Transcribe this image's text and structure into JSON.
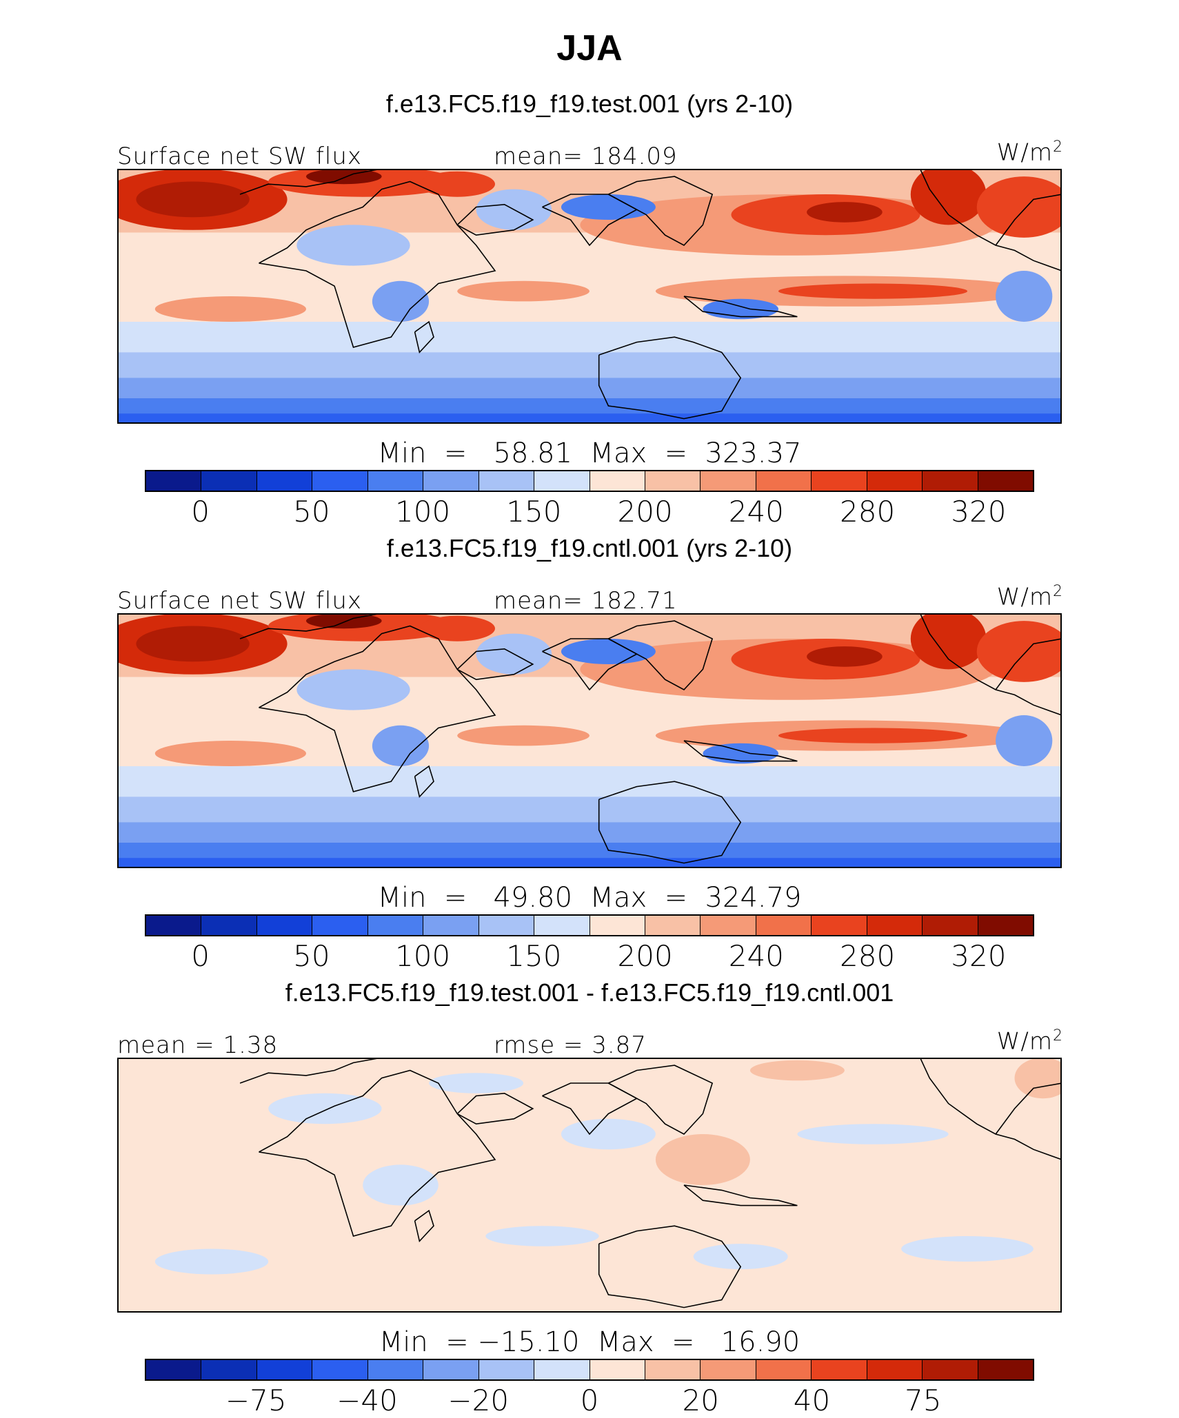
{
  "title": "JJA",
  "colors": {
    "palette": [
      "#0a1a8c",
      "#0b2fb5",
      "#1240d8",
      "#2b5ff0",
      "#4a7ef0",
      "#7aa0f2",
      "#a8c2f6",
      "#d3e2fa",
      "#fde5d6",
      "#f8c1a6",
      "#f59a77",
      "#f1714a",
      "#e9431f",
      "#d42a0a",
      "#b01c05",
      "#800c00"
    ],
    "land_outline": "#000000"
  },
  "panels": [
    {
      "case": "f.e13.FC5.f19_f19.test.001 (yrs 2-10)",
      "left_label": "Surface net SW flux",
      "center_label": "mean=  184.09",
      "units": "W/m",
      "units_sup": "2",
      "minmax": "Min  =   58.81  Max  =  323.37",
      "ticks": [
        "0",
        "50",
        "100",
        "150",
        "200",
        "240",
        "280",
        "320"
      ],
      "map_type": "field"
    },
    {
      "case": "f.e13.FC5.f19_f19.cntl.001 (yrs 2-10)",
      "left_label": "Surface net SW flux",
      "center_label": "mean=  182.71",
      "units": "W/m",
      "units_sup": "2",
      "minmax": "Min  =   49.80  Max  =  324.79",
      "ticks": [
        "0",
        "50",
        "100",
        "150",
        "200",
        "240",
        "280",
        "320"
      ],
      "map_type": "field"
    },
    {
      "case": "f.e13.FC5.f19_f19.test.001 - f.e13.FC5.f19_f19.cntl.001",
      "left_label": "mean  =    1.38",
      "center_label": "rmse  =    3.87",
      "units": "W/m",
      "units_sup": "2",
      "minmax": "Min  = −15.10  Max  =   16.90",
      "ticks": [
        "−75",
        "−40",
        "−20",
        "0",
        "20",
        "40",
        "75"
      ],
      "map_type": "diff"
    }
  ]
}
